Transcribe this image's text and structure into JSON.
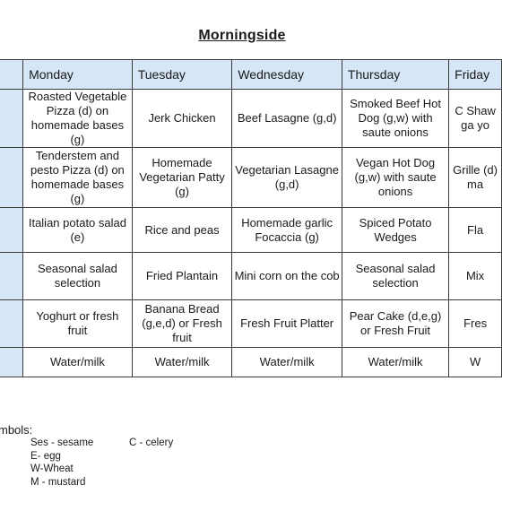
{
  "title": "Morningside",
  "days": [
    "Monday",
    "Tuesday",
    "Wednesday",
    "Thursday",
    "Friday"
  ],
  "rows": [
    [
      "Roasted Vegetable Pizza (d) on homemade bases (g)",
      "Jerk Chicken",
      "Beef Lasagne (g,d)",
      "Smoked Beef Hot Dog (g,w) with saute onions",
      "C Shaw ga yo"
    ],
    [
      "Tenderstem and pesto Pizza (d) on homemade bases (g)",
      "Homemade Vegetarian Patty (g)",
      "Vegetarian Lasagne (g,d)",
      "Vegan Hot Dog (g,w) with saute onions",
      "Grille (d) ma"
    ],
    [
      "Italian potato salad (e)",
      "Rice and peas",
      "Homemade garlic Focaccia (g)",
      "Spiced Potato Wedges",
      "Fla"
    ],
    [
      "Seasonal salad selection",
      "Fried Plantain",
      "Mini corn on the cob",
      "Seasonal salad selection",
      "Mix"
    ],
    [
      "Yoghurt or fresh fruit",
      "Banana Bread (g,e,d) or Fresh fruit",
      "Fresh Fruit Platter",
      "Pear Cake (d,e,g) or Fresh Fruit",
      "Fres"
    ],
    [
      "Water/milk",
      "Water/milk",
      "Water/milk",
      "Water/milk",
      "W"
    ]
  ],
  "symbols_label": "mbols:",
  "symbols": {
    "ses": "Ses - sesame",
    "e": "E- egg",
    "w": "W-Wheat",
    "m": "M - mustard",
    "c": "C - celery"
  }
}
